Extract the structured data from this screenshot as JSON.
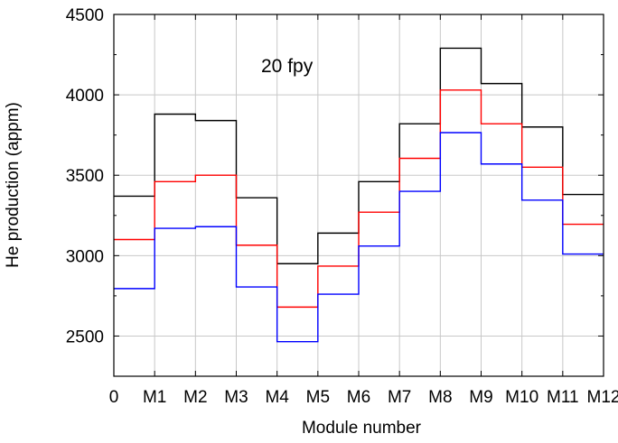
{
  "chart_data": {
    "type": "line",
    "step": true,
    "annotation": "20 fpy",
    "xlabel": "Module number",
    "ylabel": "He production (appm)",
    "x_tick_labels": [
      "0",
      "M1",
      "M2",
      "M3",
      "M4",
      "M5",
      "M6",
      "M7",
      "M8",
      "M9",
      "M10",
      "M11",
      "M12"
    ],
    "xlim": [
      0,
      12
    ],
    "ylim": [
      2250,
      4500
    ],
    "y_ticks": [
      2500,
      3000,
      3500,
      4000,
      4500
    ],
    "grid": true,
    "series": [
      {
        "color": "#000000",
        "values": [
          3370,
          3880,
          3840,
          3360,
          2950,
          3140,
          3460,
          3820,
          4290,
          4070,
          3800,
          3380
        ]
      },
      {
        "color": "#ff0000",
        "values": [
          3100,
          3460,
          3500,
          3065,
          2680,
          2935,
          3270,
          3605,
          4030,
          3820,
          3550,
          3195
        ]
      },
      {
        "color": "#0000ff",
        "values": [
          2795,
          3170,
          3180,
          2805,
          2465,
          2760,
          3060,
          3400,
          3765,
          3570,
          3345,
          3010
        ]
      }
    ]
  }
}
